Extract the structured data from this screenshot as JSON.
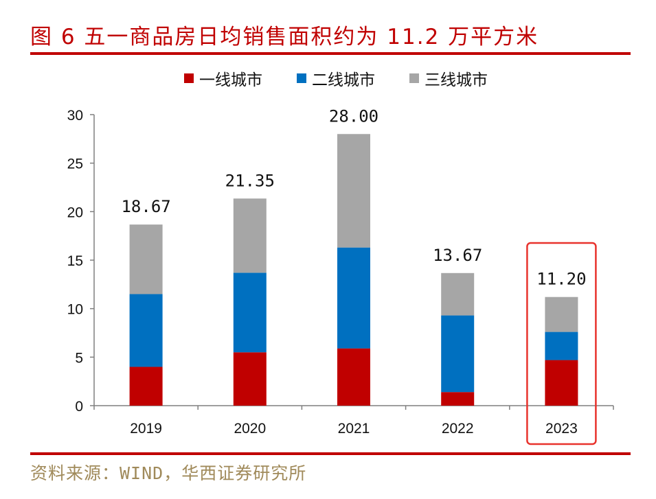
{
  "header": {
    "title": "图 6 五一商品房日均销售面积约为 11.2 万平方米"
  },
  "footer": {
    "source": "资料来源：WIND，华西证券研究所"
  },
  "colors": {
    "accent": "#c00000",
    "tier1": "#c00000",
    "tier2": "#0070c0",
    "tier3": "#a6a6a6",
    "highlight": "#e8322c"
  },
  "chart_data": {
    "type": "bar",
    "stacked": true,
    "categories": [
      "2019",
      "2020",
      "2021",
      "2022",
      "2023"
    ],
    "series": [
      {
        "name": "一线城市",
        "color": "#c00000",
        "values": [
          4.0,
          5.5,
          5.9,
          1.4,
          4.7
        ]
      },
      {
        "name": "二线城市",
        "color": "#0070c0",
        "values": [
          7.5,
          8.2,
          10.4,
          7.9,
          2.9
        ]
      },
      {
        "name": "三线城市",
        "color": "#a6a6a6",
        "values": [
          7.17,
          7.65,
          11.7,
          4.37,
          3.6
        ]
      }
    ],
    "totals": [
      "18.67",
      "21.35",
      "28.00",
      "13.67",
      "11.20"
    ],
    "yticks": [
      "0",
      "5",
      "10",
      "15",
      "20",
      "25",
      "30"
    ],
    "ylim": [
      0,
      30
    ],
    "legend_position": "top-center",
    "highlighted_category": "2023",
    "grid": false
  }
}
